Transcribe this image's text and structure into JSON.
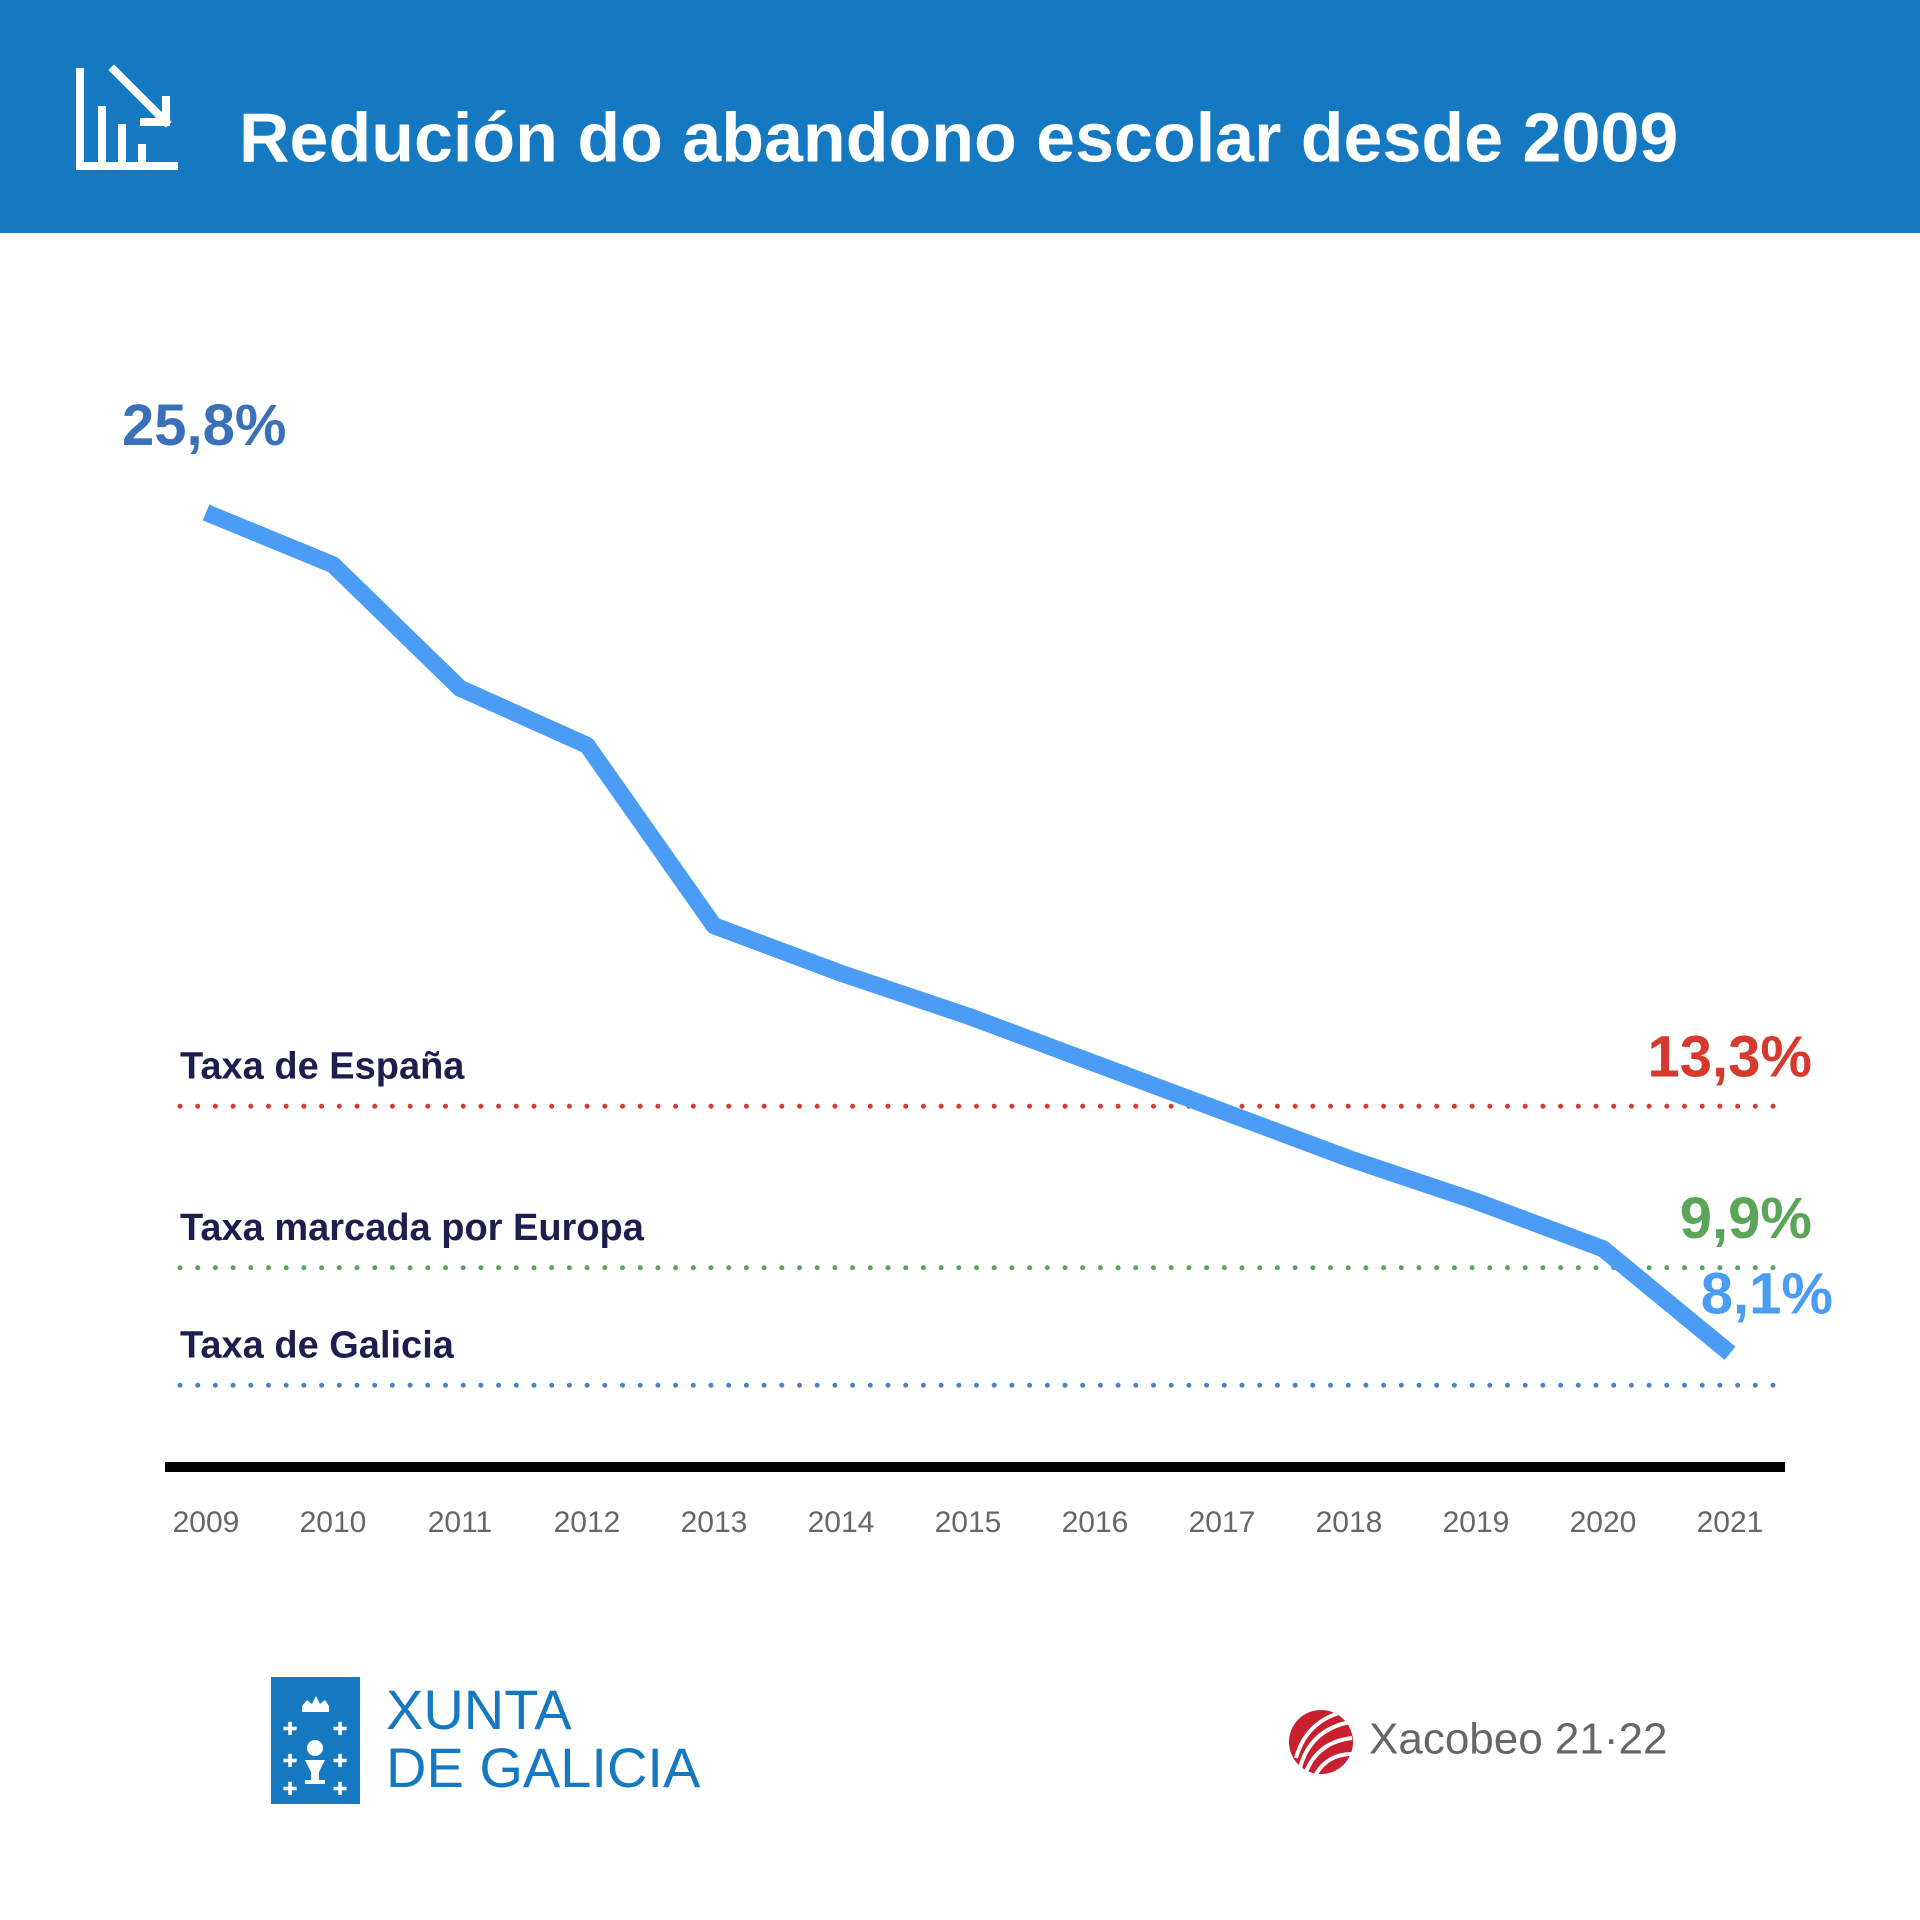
{
  "chart_data": {
    "type": "line",
    "title": "Redución do abandono escolar desde 2009",
    "categories": [
      "2009",
      "2010",
      "2011",
      "2012",
      "2013",
      "2014",
      "2015",
      "2016",
      "2017",
      "2018",
      "2019",
      "2020",
      "2021"
    ],
    "series": [
      {
        "name": "Taxa de Galicia",
        "color": "#4a9cf5",
        "values": [
          25.8,
          24.7,
          22.1,
          20.9,
          17.1,
          16.1,
          15.2,
          14.2,
          13.2,
          12.2,
          11.3,
          10.3,
          8.1
        ],
        "value_labels": [
          "25,8%",
          null,
          null,
          null,
          null,
          null,
          null,
          null,
          null,
          null,
          null,
          null,
          "8,1%"
        ],
        "label_colors": [
          "#3a70b8",
          "#4a9cf5"
        ]
      }
    ],
    "reference_lines": [
      {
        "name": "Taxa de España",
        "value": 13.3,
        "label": "13,3%",
        "color": "#d63a2f"
      },
      {
        "name": "Taxa marcada por Europa",
        "value": 9.9,
        "label": "9,9%",
        "color": "#5aa55a"
      }
    ],
    "ylim": [
      0,
      30
    ]
  },
  "footer": {
    "xunta": [
      "XUNTA",
      "DE GALICIA"
    ],
    "xacobeo": "Xacobeo 21·22"
  }
}
